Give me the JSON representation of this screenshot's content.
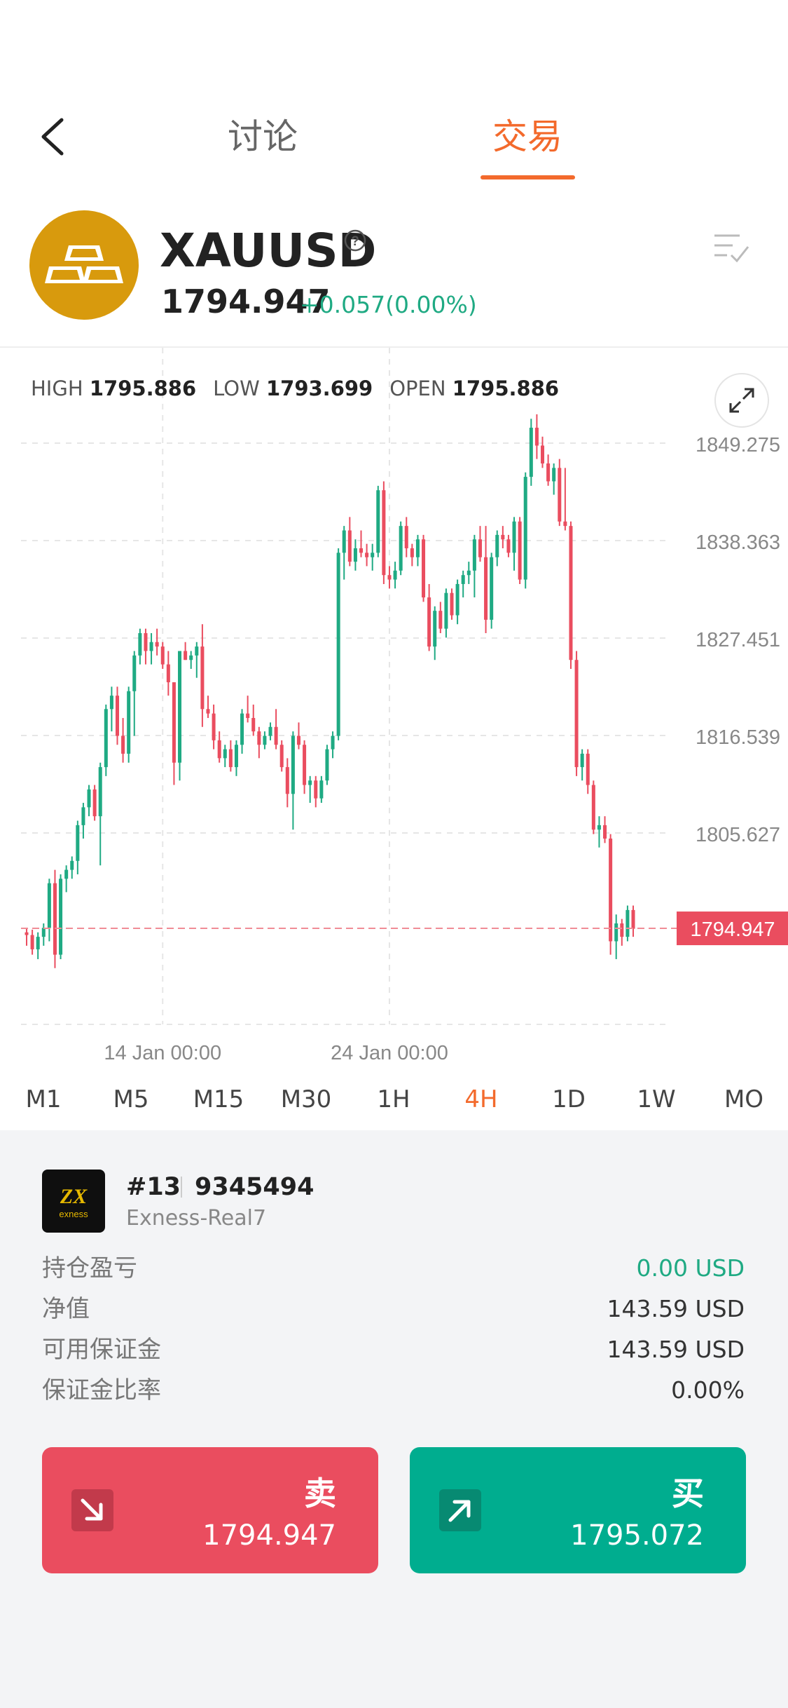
{
  "nav": {
    "back_icon": "chevron-left-icon",
    "tabs": [
      {
        "label": "讨论"
      },
      {
        "label": "交易"
      }
    ],
    "active_tab": 1
  },
  "symbol": {
    "name": "XAUUSD",
    "price": "1794.947",
    "change": "+0.057(0.00%)",
    "logo_icon": "gold-bars-icon",
    "colors": {
      "logo_bg": "#d89a0d",
      "up": "#1faa83",
      "down": "#ea4d5f",
      "accent": "#f36a2c"
    }
  },
  "ohlc": {
    "high_label": "HIGH",
    "high": "1795.886",
    "low_label": "LOW",
    "low": "1793.699",
    "open_label": "OPEN",
    "open": "1795.886"
  },
  "timeframes": {
    "items": [
      "M1",
      "M5",
      "M15",
      "M30",
      "1H",
      "4H",
      "1D",
      "1W",
      "MO"
    ],
    "active": 5
  },
  "chart_data": {
    "type": "candlestick",
    "y_ticks": [
      "1849.275",
      "1838.363",
      "1827.451",
      "1816.539",
      "1805.627"
    ],
    "y_tick_values": [
      1849.275,
      1838.363,
      1827.451,
      1816.539,
      1805.627
    ],
    "ylim": [
      1790.5,
      1853
    ],
    "x_ticks": [
      {
        "label": "14 Jan 00:00",
        "index": 24
      },
      {
        "label": "24 Jan 00:00",
        "index": 64
      }
    ],
    "current_price": {
      "label": "1794.947",
      "value": 1794.947
    },
    "grid": true,
    "candles_ohlc": [
      [
        1794.5,
        1795.0,
        1793.0,
        1794.2
      ],
      [
        1794.2,
        1794.8,
        1792.0,
        1792.6
      ],
      [
        1792.6,
        1794.5,
        1791.5,
        1794.0
      ],
      [
        1794.0,
        1795.5,
        1793.0,
        1795.0
      ],
      [
        1795.0,
        1800.5,
        1793.5,
        1800.0
      ],
      [
        1800.0,
        1801.5,
        1790.5,
        1792.0
      ],
      [
        1792.0,
        1801.0,
        1791.5,
        1800.5
      ],
      [
        1800.5,
        1802.0,
        1799.0,
        1801.5
      ],
      [
        1801.5,
        1803.0,
        1800.5,
        1802.5
      ],
      [
        1802.5,
        1807.0,
        1801.0,
        1806.5
      ],
      [
        1806.5,
        1809.0,
        1805.0,
        1808.5
      ],
      [
        1808.5,
        1811.0,
        1807.5,
        1810.5
      ],
      [
        1810.5,
        1811.0,
        1807.0,
        1807.5
      ],
      [
        1807.5,
        1813.5,
        1802.0,
        1813.0
      ],
      [
        1813.0,
        1820.0,
        1812.0,
        1819.5
      ],
      [
        1819.5,
        1822.0,
        1817.0,
        1821.0
      ],
      [
        1821.0,
        1822.0,
        1815.5,
        1816.5
      ],
      [
        1816.5,
        1818.5,
        1813.5,
        1814.5
      ],
      [
        1814.5,
        1822.0,
        1813.5,
        1821.5
      ],
      [
        1821.5,
        1826.0,
        1816.5,
        1825.5
      ],
      [
        1825.5,
        1828.5,
        1824.5,
        1828.0
      ],
      [
        1828.0,
        1828.5,
        1824.5,
        1826.0
      ],
      [
        1826.0,
        1828.0,
        1824.5,
        1827.0
      ],
      [
        1827.0,
        1828.5,
        1825.5,
        1826.5
      ],
      [
        1826.5,
        1827.0,
        1824.0,
        1824.5
      ],
      [
        1824.5,
        1826.0,
        1821.0,
        1822.5
      ],
      [
        1822.5,
        1822.5,
        1811.0,
        1813.5
      ],
      [
        1813.5,
        1826.0,
        1811.5,
        1826.0
      ],
      [
        1826.0,
        1827.0,
        1825.0,
        1825.0
      ],
      [
        1825.0,
        1826.0,
        1824.0,
        1825.5
      ],
      [
        1825.5,
        1827.0,
        1823.0,
        1826.5
      ],
      [
        1826.5,
        1829.0,
        1817.5,
        1819.5
      ],
      [
        1819.5,
        1821.0,
        1818.5,
        1819.0
      ],
      [
        1819.0,
        1820.0,
        1815.0,
        1816.0
      ],
      [
        1816.0,
        1817.0,
        1813.5,
        1814.0
      ],
      [
        1814.0,
        1815.5,
        1813.0,
        1815.0
      ],
      [
        1815.0,
        1816.0,
        1812.5,
        1813.0
      ],
      [
        1813.0,
        1816.0,
        1812.0,
        1815.5
      ],
      [
        1815.5,
        1819.5,
        1814.5,
        1819.0
      ],
      [
        1819.0,
        1821.0,
        1818.0,
        1818.5
      ],
      [
        1818.5,
        1820.0,
        1816.5,
        1817.0
      ],
      [
        1817.0,
        1817.5,
        1814.0,
        1815.5
      ],
      [
        1815.5,
        1817.0,
        1815.0,
        1816.5
      ],
      [
        1816.5,
        1818.0,
        1816.0,
        1817.5
      ],
      [
        1817.5,
        1819.5,
        1815.0,
        1815.5
      ],
      [
        1815.5,
        1816.0,
        1812.5,
        1813.0
      ],
      [
        1813.0,
        1814.0,
        1808.5,
        1810.0
      ],
      [
        1810.0,
        1817.0,
        1806.0,
        1816.5
      ],
      [
        1816.5,
        1818.0,
        1815.0,
        1815.5
      ],
      [
        1815.5,
        1816.0,
        1810.0,
        1811.0
      ],
      [
        1811.0,
        1812.0,
        1809.0,
        1811.5
      ],
      [
        1811.5,
        1812.0,
        1808.5,
        1809.5
      ],
      [
        1809.5,
        1812.0,
        1809.0,
        1811.5
      ],
      [
        1811.5,
        1815.5,
        1811.0,
        1815.0
      ],
      [
        1815.0,
        1817.0,
        1814.0,
        1816.5
      ],
      [
        1816.5,
        1837.5,
        1816.0,
        1837.0
      ],
      [
        1837.0,
        1840.0,
        1834.0,
        1839.5
      ],
      [
        1839.5,
        1841.0,
        1835.5,
        1836.0
      ],
      [
        1836.0,
        1838.5,
        1835.0,
        1837.5
      ],
      [
        1837.5,
        1839.5,
        1836.5,
        1837.0
      ],
      [
        1837.0,
        1838.0,
        1835.5,
        1836.5
      ],
      [
        1836.5,
        1838.0,
        1835.0,
        1837.0
      ],
      [
        1837.0,
        1844.5,
        1836.5,
        1844.0
      ],
      [
        1844.0,
        1845.0,
        1833.5,
        1834.5
      ],
      [
        1834.5,
        1835.5,
        1833.0,
        1834.0
      ],
      [
        1834.0,
        1836.0,
        1833.0,
        1835.0
      ],
      [
        1835.0,
        1840.5,
        1834.5,
        1840.0
      ],
      [
        1840.0,
        1841.0,
        1836.5,
        1837.5
      ],
      [
        1837.5,
        1838.0,
        1835.5,
        1836.5
      ],
      [
        1836.5,
        1839.0,
        1835.5,
        1838.5
      ],
      [
        1838.5,
        1839.0,
        1831.5,
        1832.0
      ],
      [
        1832.0,
        1833.5,
        1826.0,
        1826.5
      ]
    ],
    "candles_ohlc_tail": [
      [
        1826.5,
        1831.0,
        1825.0,
        1830.5
      ],
      [
        1830.5,
        1831.5,
        1828.0,
        1828.5
      ],
      [
        1828.5,
        1833.0,
        1827.5,
        1832.5
      ],
      [
        1832.5,
        1833.0,
        1829.5,
        1830.0
      ],
      [
        1830.0,
        1834.0,
        1829.0,
        1833.5
      ],
      [
        1833.5,
        1835.0,
        1832.0,
        1834.5
      ],
      [
        1834.5,
        1836.0,
        1833.5,
        1835.0
      ],
      [
        1835.0,
        1839.0,
        1832.0,
        1838.5
      ],
      [
        1838.5,
        1840.0,
        1836.0,
        1836.5
      ],
      [
        1836.5,
        1840.0,
        1828.0,
        1829.5
      ],
      [
        1829.5,
        1837.0,
        1828.5,
        1836.5
      ],
      [
        1836.5,
        1839.5,
        1835.5,
        1839.0
      ],
      [
        1839.0,
        1840.0,
        1837.5,
        1838.5
      ],
      [
        1838.5,
        1839.0,
        1836.5,
        1837.0
      ],
      [
        1837.0,
        1841.0,
        1835.0,
        1840.5
      ],
      [
        1840.5,
        1841.0,
        1833.5,
        1834.0
      ],
      [
        1834.0,
        1846.0,
        1833.0,
        1845.5
      ],
      [
        1845.5,
        1852.0,
        1844.5,
        1851.0
      ],
      [
        1851.0,
        1852.5,
        1847.5,
        1849.0
      ],
      [
        1849.0,
        1850.0,
        1846.5,
        1847.0
      ],
      [
        1847.0,
        1848.0,
        1844.5,
        1845.0
      ],
      [
        1845.0,
        1847.0,
        1843.5,
        1846.5
      ],
      [
        1846.5,
        1847.5,
        1840.0,
        1840.5
      ],
      [
        1840.5,
        1846.5,
        1839.5,
        1840.0
      ],
      [
        1840.0,
        1840.5,
        1824.0,
        1825.0
      ],
      [
        1825.0,
        1826.0,
        1812.0,
        1813.0
      ],
      [
        1813.0,
        1815.0,
        1811.5,
        1814.5
      ],
      [
        1814.5,
        1815.0,
        1810.0,
        1811.0
      ],
      [
        1811.0,
        1811.5,
        1805.5,
        1806.0
      ],
      [
        1806.0,
        1807.5,
        1804.0,
        1806.5
      ],
      [
        1806.5,
        1807.5,
        1804.5,
        1805.0
      ],
      [
        1805.0,
        1805.5,
        1792.0,
        1793.5
      ],
      [
        1793.5,
        1796.5,
        1791.5,
        1795.5
      ],
      [
        1795.5,
        1796.0,
        1793.0,
        1794.0
      ],
      [
        1794.0,
        1797.5,
        1793.5,
        1797.0
      ],
      [
        1797.0,
        1797.5,
        1794.0,
        1794.9
      ]
    ]
  },
  "account": {
    "number": "#13",
    "id": "9345494",
    "server": "Exness-Real7",
    "logo_text": "exness",
    "rows": [
      {
        "label": "持仓盈亏",
        "value": "0.00 USD"
      },
      {
        "label": "净值",
        "value": "143.59 USD"
      },
      {
        "label": "可用保证金",
        "value": "143.59 USD"
      },
      {
        "label": "保证金比率",
        "value": "0.00%"
      }
    ]
  },
  "trade": {
    "sell_label": "卖",
    "sell_price": "1794.947",
    "buy_label": "买",
    "buy_price": "1795.072",
    "sell_icon": "arrow-down-right-icon",
    "buy_icon": "arrow-up-right-icon"
  }
}
